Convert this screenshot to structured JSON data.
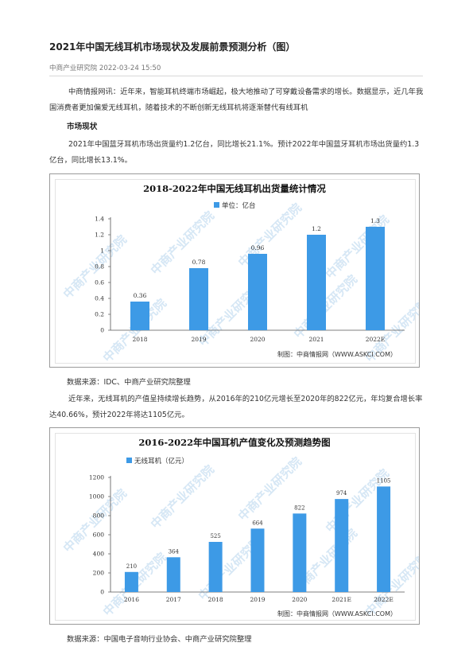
{
  "article": {
    "title": "2021年中国无线耳机市场现状及发展前景预测分析（图）",
    "meta": "中商产业研究院 2022-03-24 15:50",
    "intro": "中商情报网讯：近年来，智能耳机终端市场崛起，极大地推动了可穿戴设备需求的增长。数据显示，近几年我国消费者更加偏爱无线耳机，随着技术的不断创新无线耳机将逐渐替代有线耳机",
    "section_heading": "市场现状",
    "para1": "2021年中国蓝牙耳机市场出货量约1.2亿台，同比增长21.1%。预计2022年中国蓝牙耳机市场出货量约1.3亿台，同比增长13.1%。",
    "source1": "数据来源：IDC、中商产业研究院整理",
    "para2": "近年来，无线耳机的产值呈持续增长趋势，从2016年的210亿元增长至2020年的822亿元，年均复合增长率达40.66%，预计2022年将达1105亿元。",
    "source2": "数据来源：中国电子音响行业协会、中商产业研究院整理"
  },
  "watermark_text": "中商产业研究院",
  "chart_data": [
    {
      "type": "bar",
      "title": "2018-2022年中国无线耳机出货量统计情况",
      "legend": "单位：亿台",
      "legend_position": "top-center",
      "categories": [
        "2018",
        "2019",
        "2020",
        "2021",
        "2022E"
      ],
      "values": [
        0.36,
        0.78,
        0.96,
        1.2,
        1.3
      ],
      "value_labels": [
        "0.36",
        "0.78",
        "0.96",
        "1.2",
        "1.3"
      ],
      "ylim": [
        0,
        1.4
      ],
      "yticks": [
        "0",
        "0.2",
        "0.4",
        "0.6",
        "0.8",
        "1",
        "1.2",
        "1.4"
      ],
      "grid": false,
      "bar_color": "#3d9ae6",
      "credit": "制图：中商情报网（WWW.ASKCI.COM）"
    },
    {
      "type": "bar",
      "title": "2016-2022年中国耳机产值变化及预测趋势图",
      "legend": "无线耳机（亿元）",
      "legend_position": "top-left",
      "categories": [
        "2016",
        "2017",
        "2018",
        "2019",
        "2020",
        "2021E",
        "2022E"
      ],
      "values": [
        210,
        364,
        525,
        664,
        822,
        974,
        1105
      ],
      "value_labels": [
        "210",
        "364",
        "525",
        "664",
        "822",
        "974",
        "1105"
      ],
      "ylim": [
        0,
        1200
      ],
      "yticks": [
        "0",
        "200",
        "400",
        "600",
        "800",
        "1000",
        "1200"
      ],
      "grid": false,
      "bar_color": "#3d9ae6",
      "credit": "制图：中商情报网（WWW.ASKCI.COM）"
    }
  ]
}
